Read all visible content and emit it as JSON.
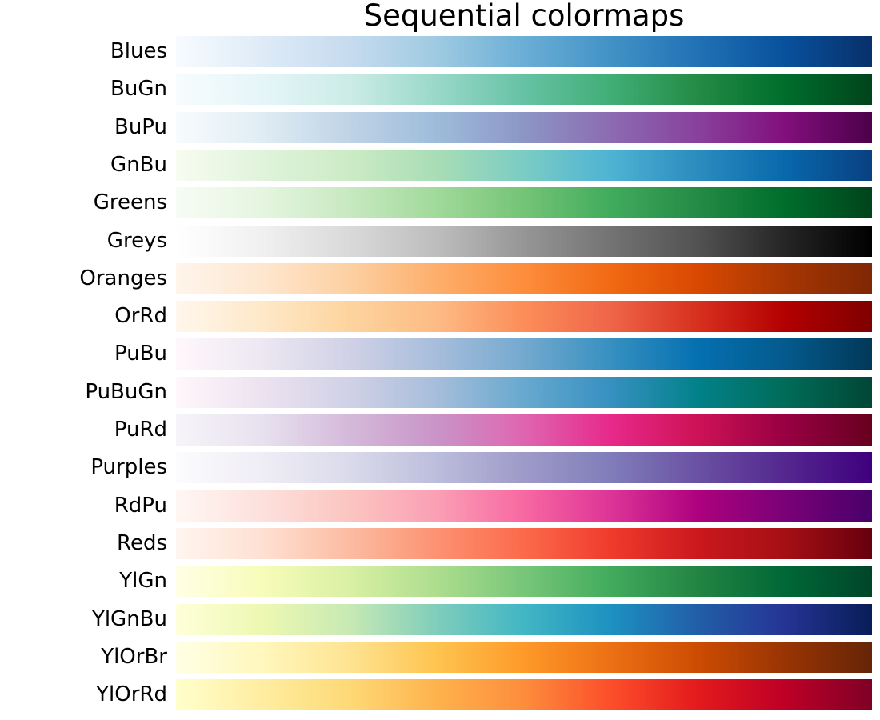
{
  "chart_data": {
    "type": "colormap-swatch",
    "title": "Sequential colormaps",
    "colormaps": [
      {
        "name": "Blues",
        "colors": [
          "#f7fbff",
          "#deebf7",
          "#c6dbef",
          "#9ecae1",
          "#6baed6",
          "#4292c6",
          "#2171b5",
          "#08519c",
          "#08306b"
        ]
      },
      {
        "name": "BuGn",
        "colors": [
          "#f7fcfd",
          "#e5f5f9",
          "#ccece6",
          "#99d8c9",
          "#66c2a4",
          "#41ae76",
          "#238b45",
          "#006d2c",
          "#00441b"
        ]
      },
      {
        "name": "BuPu",
        "colors": [
          "#f7fcfd",
          "#e0ecf4",
          "#bfd3e6",
          "#9ebcda",
          "#8c96c6",
          "#8c6bb1",
          "#88419d",
          "#810f7c",
          "#4d004b"
        ]
      },
      {
        "name": "GnBu",
        "colors": [
          "#f7fcf0",
          "#e0f3db",
          "#ccebc5",
          "#a8ddb5",
          "#7bccc4",
          "#4eb3d3",
          "#2b8cbe",
          "#0868ac",
          "#084081"
        ]
      },
      {
        "name": "Greens",
        "colors": [
          "#f7fcf5",
          "#e5f5e0",
          "#c7e9c0",
          "#a1d99b",
          "#74c476",
          "#41ab5d",
          "#238b45",
          "#006d2c",
          "#00441b"
        ]
      },
      {
        "name": "Greys",
        "colors": [
          "#ffffff",
          "#f0f0f0",
          "#d9d9d9",
          "#bdbdbd",
          "#969696",
          "#737373",
          "#525252",
          "#252525",
          "#000000"
        ]
      },
      {
        "name": "Oranges",
        "colors": [
          "#fff5eb",
          "#fee6ce",
          "#fdd0a2",
          "#fdae6b",
          "#fd8d3c",
          "#f16913",
          "#d94801",
          "#a63603",
          "#7f2704"
        ]
      },
      {
        "name": "OrRd",
        "colors": [
          "#fff7ec",
          "#fee8c8",
          "#fdd49e",
          "#fdbb84",
          "#fc8d59",
          "#ef6548",
          "#d7301f",
          "#b30000",
          "#7f0000"
        ]
      },
      {
        "name": "PuBu",
        "colors": [
          "#fff7fb",
          "#ece7f2",
          "#d0d1e6",
          "#a6bddb",
          "#74a9cf",
          "#3690c0",
          "#0570b0",
          "#045a8d",
          "#023858"
        ]
      },
      {
        "name": "PuBuGn",
        "colors": [
          "#fff7fb",
          "#ece2f0",
          "#d0d1e6",
          "#a6bddb",
          "#67a9cf",
          "#3690c0",
          "#02818a",
          "#016c59",
          "#014636"
        ]
      },
      {
        "name": "PuRd",
        "colors": [
          "#f7f4f9",
          "#e7e1ef",
          "#d4b9da",
          "#c994c7",
          "#df65b0",
          "#e7298a",
          "#ce1256",
          "#980043",
          "#67001f"
        ]
      },
      {
        "name": "Purples",
        "colors": [
          "#fcfbfd",
          "#efedf5",
          "#dadaeb",
          "#bcbddc",
          "#9e9ac8",
          "#807dba",
          "#6a51a3",
          "#54278f",
          "#3f007d"
        ]
      },
      {
        "name": "RdPu",
        "colors": [
          "#fff7f3",
          "#fde0dd",
          "#fcc5c0",
          "#fa9fb5",
          "#f768a1",
          "#dd3497",
          "#ae017e",
          "#7a0177",
          "#49006a"
        ]
      },
      {
        "name": "Reds",
        "colors": [
          "#fff5f0",
          "#fee0d2",
          "#fcbba1",
          "#fc9272",
          "#fb6a4a",
          "#ef3b2c",
          "#cb181d",
          "#a50f15",
          "#67000d"
        ]
      },
      {
        "name": "YlGn",
        "colors": [
          "#ffffe5",
          "#f7fcb9",
          "#d9f0a3",
          "#addd8e",
          "#78c679",
          "#41ab5d",
          "#238443",
          "#006837",
          "#004529"
        ]
      },
      {
        "name": "YlGnBu",
        "colors": [
          "#ffffd9",
          "#edf8b1",
          "#c7e9b4",
          "#7fcdbb",
          "#41b6c4",
          "#1d91c0",
          "#225ea8",
          "#253494",
          "#081d58"
        ]
      },
      {
        "name": "YlOrBr",
        "colors": [
          "#ffffe5",
          "#fff7bc",
          "#fee391",
          "#fec44f",
          "#fe9929",
          "#ec7014",
          "#cc4c02",
          "#993404",
          "#662506"
        ]
      },
      {
        "name": "YlOrRd",
        "colors": [
          "#ffffcc",
          "#ffeda0",
          "#fed976",
          "#feb24c",
          "#fd8d3c",
          "#fc4e2a",
          "#e31a1c",
          "#bd0026",
          "#800026"
        ]
      }
    ]
  }
}
